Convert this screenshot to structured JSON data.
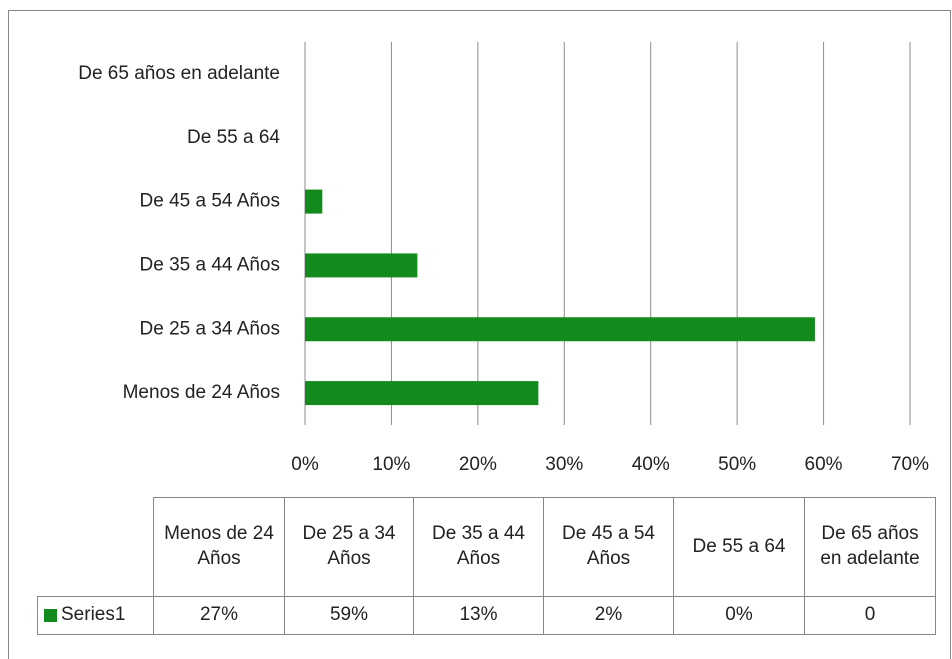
{
  "chart_data": {
    "type": "bar",
    "orientation": "horizontal",
    "categories": [
      "Menos de 24 Años",
      "De 25 a 34 Años",
      "De 35 a 44 Años",
      "De 45 a 54 Años",
      "De 55 a 64",
      "De 65 años en adelante"
    ],
    "series": [
      {
        "name": "Series1",
        "color": "#138a1c",
        "values": [
          27,
          59,
          13,
          2,
          0,
          0
        ],
        "value_labels": [
          "27%",
          "59%",
          "13%",
          "2%",
          "0%",
          "0"
        ]
      }
    ],
    "xlim": [
      0,
      70
    ],
    "xticks": [
      {
        "value": 0,
        "label": "0%"
      },
      {
        "value": 10,
        "label": "10%"
      },
      {
        "value": 20,
        "label": "20%"
      },
      {
        "value": 30,
        "label": "30%"
      },
      {
        "value": 40,
        "label": "40%"
      },
      {
        "value": 50,
        "label": "50%"
      },
      {
        "value": 60,
        "label": "60%"
      },
      {
        "value": 70,
        "label": "70%"
      }
    ],
    "grid": true
  }
}
